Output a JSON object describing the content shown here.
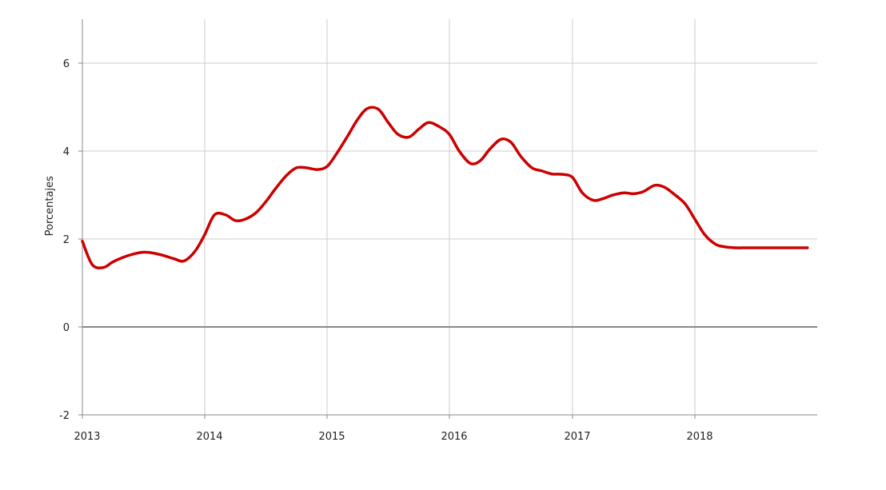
{
  "chart_data": {
    "type": "line",
    "title": "",
    "xlabel": "",
    "ylabel": "Porcentajes",
    "xlim": [
      2013.0,
      2018.99
    ],
    "ylim": [
      -2,
      7
    ],
    "yticks": [
      -2,
      0,
      2,
      4,
      6
    ],
    "xticks": [
      {
        "value": 2013,
        "label": "2013"
      },
      {
        "value": 2014,
        "label": "2014"
      },
      {
        "value": 2015,
        "label": "2015"
      },
      {
        "value": 2016,
        "label": "2016"
      },
      {
        "value": 2017,
        "label": "2017"
      },
      {
        "value": 2018,
        "label": "2018"
      }
    ],
    "grid": true,
    "legend": "none",
    "colors": {
      "series": "#cc0000",
      "grid": "#cccccc",
      "zero_line": "#888888",
      "axis": "#888888"
    },
    "series": [
      {
        "x": [
          2013.0,
          2013.08,
          2013.17,
          2013.25,
          2013.33,
          2013.42,
          2013.5,
          2013.58,
          2013.67,
          2013.75,
          2013.83,
          2013.92,
          2014.0,
          2014.08,
          2014.17,
          2014.25,
          2014.33,
          2014.42,
          2014.5,
          2014.58,
          2014.67,
          2014.75,
          2014.83,
          2014.92,
          2015.0,
          2015.08,
          2015.17,
          2015.25,
          2015.33,
          2015.42,
          2015.5,
          2015.58,
          2015.67,
          2015.75,
          2015.83,
          2015.92,
          2016.0,
          2016.08,
          2016.17,
          2016.25,
          2016.33,
          2016.42,
          2016.5,
          2016.58,
          2016.67,
          2016.75,
          2016.83,
          2016.92,
          2017.0,
          2017.08,
          2017.17,
          2017.25,
          2017.33,
          2017.42,
          2017.5,
          2017.58,
          2017.67,
          2017.75,
          2017.83,
          2017.92,
          2018.0,
          2018.08,
          2018.17,
          2018.25,
          2018.33,
          2018.42,
          2018.5,
          2018.58,
          2018.67,
          2018.75,
          2018.83,
          2018.92
        ],
        "y": [
          1.95,
          1.42,
          1.35,
          1.48,
          1.58,
          1.66,
          1.7,
          1.68,
          1.62,
          1.55,
          1.5,
          1.72,
          2.1,
          2.55,
          2.55,
          2.42,
          2.45,
          2.6,
          2.85,
          3.15,
          3.45,
          3.62,
          3.62,
          3.58,
          3.65,
          3.95,
          4.35,
          4.72,
          4.97,
          4.95,
          4.65,
          4.38,
          4.32,
          4.5,
          4.65,
          4.55,
          4.38,
          4.0,
          3.72,
          3.78,
          4.05,
          4.27,
          4.2,
          3.88,
          3.62,
          3.55,
          3.48,
          3.47,
          3.4,
          3.05,
          2.88,
          2.92,
          3.0,
          3.05,
          3.03,
          3.08,
          3.22,
          3.18,
          3.02,
          2.8,
          2.45,
          2.1,
          1.88,
          1.82,
          1.8,
          1.8,
          1.8,
          1.8,
          1.8,
          1.8,
          1.8,
          1.8
        ]
      }
    ]
  }
}
